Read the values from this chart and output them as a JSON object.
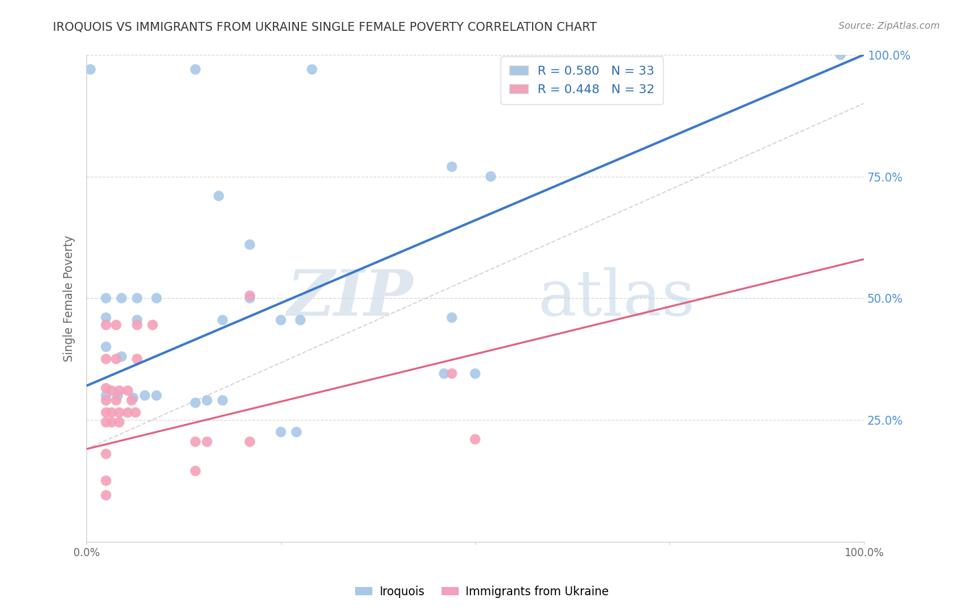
{
  "title": "IROQUOIS VS IMMIGRANTS FROM UKRAINE SINGLE FEMALE POVERTY CORRELATION CHART",
  "source": "Source: ZipAtlas.com",
  "ylabel": "Single Female Poverty",
  "legend_label1": "Iroquois",
  "legend_label2": "Immigrants from Ukraine",
  "r1": 0.58,
  "n1": 33,
  "r2": 0.448,
  "n2": 32,
  "color_blue": "#a8c8e8",
  "color_pink": "#f4a0b8",
  "line_blue": "#3a78c9",
  "line_pink": "#e06080",
  "line_gray": "#c8c8c8",
  "watermark_zip": "ZIP",
  "watermark_atlas": "atlas",
  "xlim": [
    0,
    1
  ],
  "ylim": [
    0,
    1
  ],
  "blue_line_y0": 0.32,
  "blue_line_y1": 1.0,
  "pink_line_y0": 0.19,
  "pink_line_y1": 0.58,
  "blue_points": [
    [
      0.005,
      0.97
    ],
    [
      0.14,
      0.97
    ],
    [
      0.29,
      0.97
    ],
    [
      0.17,
      0.71
    ],
    [
      0.47,
      0.77
    ],
    [
      0.52,
      0.75
    ],
    [
      0.21,
      0.61
    ],
    [
      0.025,
      0.5
    ],
    [
      0.045,
      0.5
    ],
    [
      0.065,
      0.5
    ],
    [
      0.09,
      0.5
    ],
    [
      0.025,
      0.46
    ],
    [
      0.065,
      0.455
    ],
    [
      0.175,
      0.455
    ],
    [
      0.21,
      0.5
    ],
    [
      0.25,
      0.455
    ],
    [
      0.275,
      0.455
    ],
    [
      0.47,
      0.46
    ],
    [
      0.025,
      0.4
    ],
    [
      0.045,
      0.38
    ],
    [
      0.025,
      0.3
    ],
    [
      0.04,
      0.3
    ],
    [
      0.06,
      0.295
    ],
    [
      0.075,
      0.3
    ],
    [
      0.09,
      0.3
    ],
    [
      0.14,
      0.285
    ],
    [
      0.155,
      0.29
    ],
    [
      0.175,
      0.29
    ],
    [
      0.25,
      0.225
    ],
    [
      0.27,
      0.225
    ],
    [
      0.97,
      1.0
    ],
    [
      0.46,
      0.345
    ],
    [
      0.5,
      0.345
    ]
  ],
  "pink_points": [
    [
      0.21,
      0.505
    ],
    [
      0.025,
      0.445
    ],
    [
      0.038,
      0.445
    ],
    [
      0.065,
      0.445
    ],
    [
      0.085,
      0.445
    ],
    [
      0.025,
      0.375
    ],
    [
      0.038,
      0.375
    ],
    [
      0.065,
      0.375
    ],
    [
      0.025,
      0.315
    ],
    [
      0.032,
      0.31
    ],
    [
      0.042,
      0.31
    ],
    [
      0.053,
      0.31
    ],
    [
      0.025,
      0.29
    ],
    [
      0.038,
      0.29
    ],
    [
      0.058,
      0.29
    ],
    [
      0.025,
      0.265
    ],
    [
      0.032,
      0.265
    ],
    [
      0.042,
      0.265
    ],
    [
      0.053,
      0.265
    ],
    [
      0.063,
      0.265
    ],
    [
      0.025,
      0.245
    ],
    [
      0.032,
      0.245
    ],
    [
      0.042,
      0.245
    ],
    [
      0.14,
      0.205
    ],
    [
      0.155,
      0.205
    ],
    [
      0.21,
      0.205
    ],
    [
      0.025,
      0.18
    ],
    [
      0.14,
      0.145
    ],
    [
      0.47,
      0.345
    ],
    [
      0.5,
      0.21
    ],
    [
      0.025,
      0.125
    ],
    [
      0.025,
      0.095
    ]
  ],
  "bg_color": "#ffffff",
  "grid_color": "#d8d8d8",
  "title_color": "#333333",
  "axis_label_color": "#666666",
  "right_tick_color": "#4a90d9",
  "marker_size": 11,
  "legend_text_color": "#2b6cb0"
}
